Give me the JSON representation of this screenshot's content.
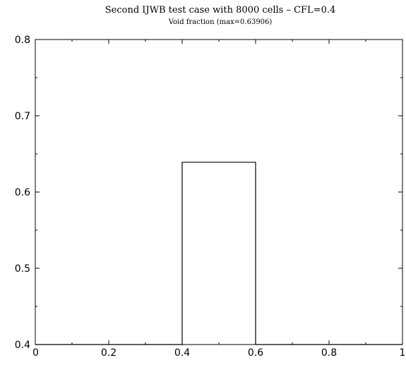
{
  "chart_data": {
    "type": "line",
    "title": "Second IJWB test case with 8000 cells – CFL=0.4",
    "subtitle": "Void fraction (max=0.63906)",
    "xlabel": "",
    "ylabel": "",
    "xlim": [
      0,
      1
    ],
    "ylim": [
      0.4,
      0.8
    ],
    "x_ticks": [
      0,
      0.2,
      0.4,
      0.6,
      0.8,
      1
    ],
    "x_tick_labels": [
      "0",
      "0.2",
      "0.4",
      "0.6",
      "0.8",
      "1"
    ],
    "y_ticks": [
      0.4,
      0.5,
      0.6,
      0.7,
      0.8
    ],
    "y_tick_labels": [
      "0.4",
      "0.5",
      "0.6",
      "0.7",
      "0.8"
    ],
    "grid": false,
    "series": [
      {
        "x": [
          0,
          0.4,
          0.4,
          0.6,
          0.6,
          1
        ],
        "y": [
          0.4,
          0.4,
          0.63906,
          0.63906,
          0.4,
          0.4
        ],
        "color": "#000000"
      }
    ]
  }
}
